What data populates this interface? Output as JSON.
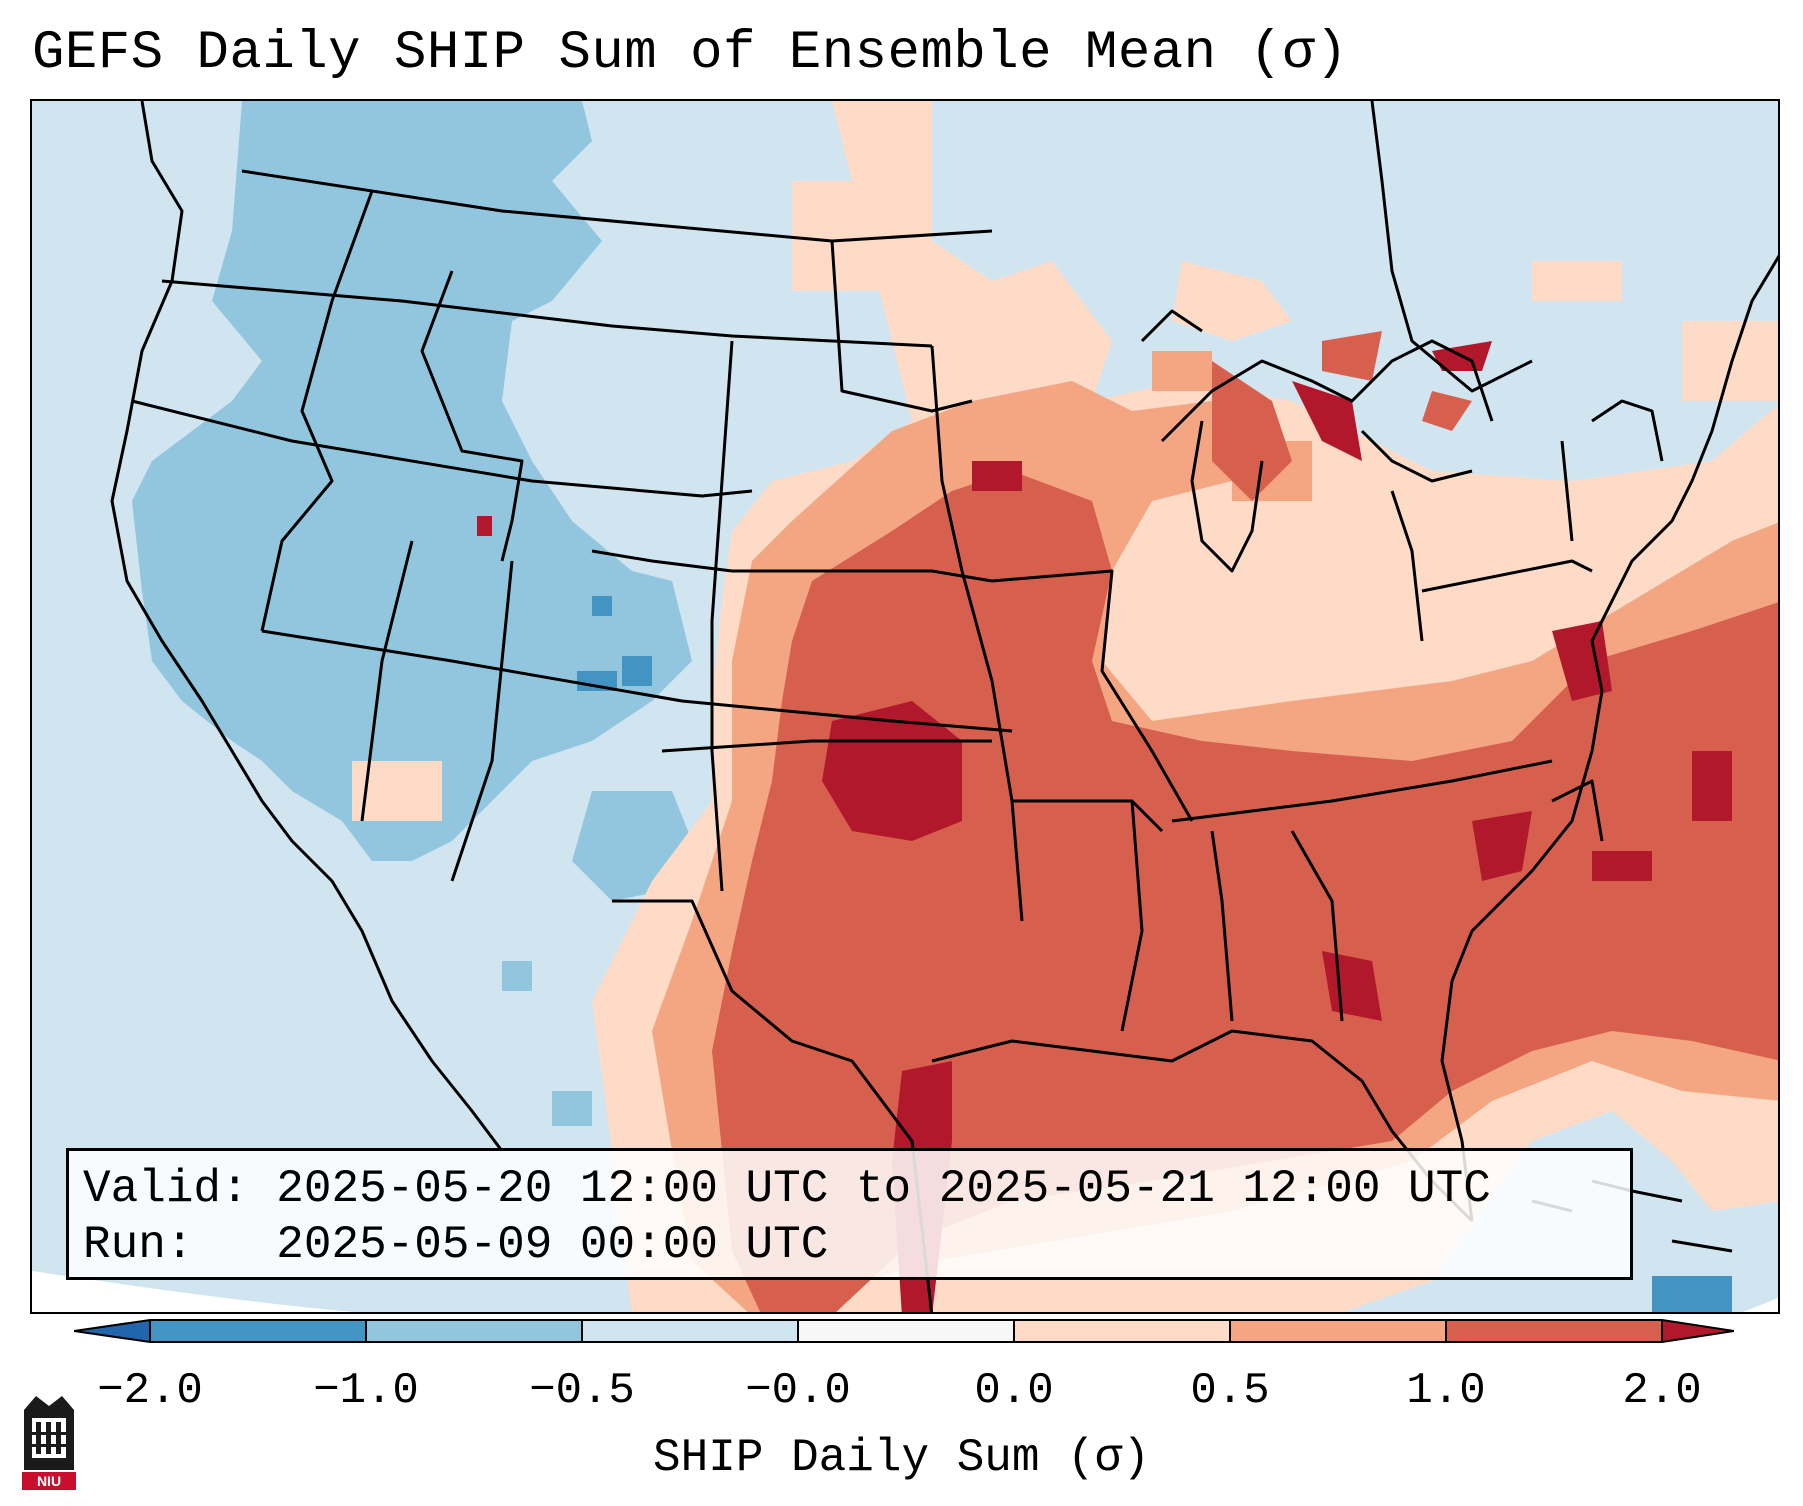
{
  "title": "GEFS Daily SHIP Sum of Ensemble Mean (σ)",
  "info": {
    "valid_label": "Valid:",
    "valid_value": "2025-05-20 12:00 UTC to 2025-05-21 12:00 UTC",
    "run_label": "Run:",
    "run_value": "2025-05-09 00:00 UTC"
  },
  "colorbar": {
    "label": "SHIP Daily Sum (σ)",
    "ticks": [
      "−2.0",
      "−1.0",
      "−0.5",
      "−0.0",
      "0.0",
      "0.5",
      "1.0",
      "2.0"
    ],
    "bins": [
      {
        "range": "below -2.0",
        "color": "#2166ac"
      },
      {
        "range": "-2.0 to -1.0",
        "color": "#4393c3"
      },
      {
        "range": "-1.0 to -0.5",
        "color": "#92c5de"
      },
      {
        "range": "-0.5 to -0.0",
        "color": "#d1e5f0"
      },
      {
        "range": "-0.0 to 0.0",
        "color": "#f7f7f7"
      },
      {
        "range": "0.0 to 0.5",
        "color": "#fddbc7"
      },
      {
        "range": "0.5 to 1.0",
        "color": "#f4a582"
      },
      {
        "range": "1.0 to 2.0",
        "color": "#d6604d"
      },
      {
        "range": "above 2.0",
        "color": "#b2182b"
      }
    ]
  },
  "regions": {
    "west_us": "-1.0 to -0.5",
    "northern_plains": "-0.5 to -0.0",
    "southern_plains_and_southeast": "1.0 to 2.0",
    "oklahoma_core": "above 2.0",
    "western_atlantic": "1.0 to 2.0"
  },
  "logo": {
    "text": "NIU",
    "accent": "#c8102e"
  }
}
